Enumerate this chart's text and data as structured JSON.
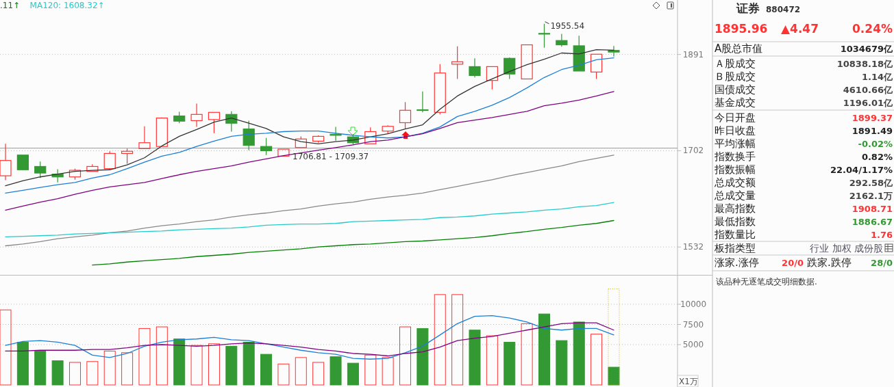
{
  "chart_data": [
    {
      "type": "candlestick",
      "categories": [
        null,
        null,
        null,
        null,
        null,
        null,
        null,
        null,
        null,
        null,
        null,
        null,
        null,
        null,
        null,
        null,
        null,
        null,
        null,
        null,
        null,
        null,
        null,
        null,
        null,
        null,
        null,
        null,
        null,
        null,
        null,
        null,
        null,
        null,
        null,
        null
      ],
      "ohlc": [
        [
          1656,
          1715,
          1648,
          1684
        ],
        [
          1694,
          1694,
          1667,
          1667
        ],
        [
          1673,
          1682,
          1652,
          1661
        ],
        [
          1659,
          1668,
          1644,
          1654
        ],
        [
          1654,
          1669,
          1649,
          1666
        ],
        [
          1664,
          1677,
          1664,
          1673
        ],
        [
          1669,
          1701,
          1667,
          1697
        ],
        [
          1697,
          1706,
          1678,
          1701
        ],
        [
          1706,
          1748,
          1706,
          1717
        ],
        [
          1710,
          1765,
          1710,
          1764
        ],
        [
          1768,
          1776,
          1754,
          1758
        ],
        [
          1759,
          1792,
          1747,
          1771
        ],
        [
          1761,
          1775,
          1735,
          1775
        ],
        [
          1771,
          1777,
          1738,
          1754
        ],
        [
          1743,
          1759,
          1703,
          1712
        ],
        [
          1710,
          1726,
          1694,
          1702
        ],
        [
          1692,
          1705,
          1692,
          1705
        ],
        [
          1708,
          1729,
          1708,
          1724
        ],
        [
          1720,
          1731,
          1717,
          1729
        ],
        [
          1733,
          1747,
          1721,
          1731
        ],
        [
          1728,
          1733,
          1713,
          1717
        ],
        [
          1715,
          1746,
          1715,
          1738
        ],
        [
          1739,
          1750,
          1734,
          1748
        ],
        [
          1755,
          1795,
          1743,
          1779
        ],
        [
          1780,
          1816,
          1775,
          1779
        ],
        [
          1775,
          1871,
          1771,
          1853
        ],
        [
          1871,
          1908,
          1841,
          1876
        ],
        [
          1866,
          1883,
          1844,
          1848
        ],
        [
          1838,
          1866,
          1820,
          1866
        ],
        [
          1883,
          1885,
          1841,
          1851
        ],
        [
          1841,
          1911,
          1841,
          1911
        ],
        [
          1935,
          1955.54,
          1905,
          1934
        ],
        [
          1920,
          1934,
          1907,
          1911
        ],
        [
          1909,
          1930,
          1857,
          1857
        ],
        [
          1855,
          1891.49,
          1841,
          1891.49
        ],
        [
          1899.37,
          1908.71,
          1886.67,
          1895.96
        ]
      ],
      "colors": [
        "#ff3333",
        "#339933",
        "#339933",
        "#339933",
        "#ff3333",
        "#ff3333",
        "#ff3333",
        "#ff3333",
        "#ff3333",
        "#ff3333",
        "#339933",
        "#ff3333",
        "#ff3333",
        "#339933",
        "#339933",
        "#339933",
        "#ff3333",
        "#ff3333",
        "#ff3333",
        "#339933",
        "#339933",
        "#ff3333",
        "#ff3333",
        "#ff3333",
        "#339933",
        "#ff3333",
        "#ff3333",
        "#339933",
        "#ff3333",
        "#339933",
        "#ff3333",
        "#339933",
        "#339933",
        "#339933",
        "#ff3333",
        "#339933"
      ],
      "series": [
        {
          "type": "line",
          "color": "#333333",
          "values": [
            1638,
            1647,
            1654,
            1659,
            1664,
            1666,
            1667,
            1676,
            1689,
            1711,
            1729,
            1742,
            1756,
            1764,
            1754,
            1744,
            1728,
            1719,
            1715,
            1719,
            1722,
            1728,
            1734,
            1743,
            1751,
            1781,
            1807,
            1826,
            1841,
            1856,
            1870,
            1881,
            1894,
            1892,
            1901,
            1900
          ]
        },
        {
          "type": "line",
          "color": "#1a7fd6",
          "values": [
            1625,
            1630,
            1635,
            1640,
            1644,
            1652,
            1658,
            1669,
            1681,
            1692,
            1699,
            1710,
            1720,
            1729,
            1733,
            1735,
            1738,
            1739,
            1739,
            1735,
            1731,
            1728,
            1726,
            1728,
            1735,
            1747,
            1767,
            1777,
            1789,
            1804,
            1823,
            1844,
            1860,
            1869,
            1880,
            1884
          ]
        },
        {
          "type": "line",
          "color": "#800080",
          "values": [
            1595,
            1602,
            1609,
            1615,
            1623,
            1630,
            1636,
            1640,
            1644,
            1651,
            1658,
            1664,
            1669,
            1674,
            1681,
            1687,
            1693,
            1698,
            1703,
            1708,
            1713,
            1719,
            1722,
            1728,
            1734,
            1744,
            1755,
            1760,
            1765,
            1771,
            1777,
            1788,
            1793,
            1799,
            1807,
            1816
          ]
        },
        {
          "type": "line",
          "color": "#888888",
          "values": [
            1534,
            1537,
            1541,
            1546,
            1549,
            1552,
            1556,
            1559,
            1564,
            1568,
            1571,
            1575,
            1578,
            1583,
            1587,
            1590,
            1594,
            1597,
            1602,
            1606,
            1609,
            1614,
            1618,
            1621,
            1625,
            1631,
            1637,
            1643,
            1649,
            1656,
            1662,
            1668,
            1674,
            1682,
            1688,
            1694
          ]
        },
        {
          "type": "line",
          "color": "#22cccc",
          "values": [
            1549,
            1550,
            1551,
            1552,
            1554,
            1555,
            1556,
            1557,
            1558,
            1559,
            1561,
            1562,
            1563,
            1564,
            1566,
            1569,
            1570,
            1571,
            1571,
            1572,
            1575,
            1576,
            1577,
            1578,
            1579,
            1582,
            1583,
            1585,
            1588,
            1590,
            1592,
            1595,
            1597,
            1601,
            1603,
            1608.32
          ]
        },
        {
          "type": "line",
          "color": "#008000",
          "values": [
            null,
            null,
            null,
            null,
            null,
            1502,
            1504,
            1507,
            1509,
            1511,
            1513,
            1516,
            1518,
            1520,
            1523,
            1525,
            1527,
            1529,
            1532,
            1534,
            1536,
            1537,
            1539,
            1541,
            1542,
            1544,
            1546,
            1548,
            1551,
            1555,
            1558,
            1562,
            1565,
            1569,
            1572,
            1577
          ]
        }
      ],
      "log": true,
      "ylim": [
        1486,
        2007
      ],
      "yticks": [
        1532,
        1702,
        1891
      ],
      "grid": "y",
      "tick_labels": "y",
      "ref_lines": [
        {
          "axis": "y",
          "value": 1706.81,
          "color": "#aaaaaa"
        }
      ],
      "annotations": [
        ".11↑",
        "MA120: 1608.32↑",
        "1955.54",
        {
          "text": "1706.81 - 1709.37",
          "y": 1706.81
        }
      ]
    },
    {
      "type": "bar",
      "categories": [
        null,
        null,
        null,
        null,
        null,
        null,
        null,
        null,
        null,
        null,
        null,
        null,
        null,
        null,
        null,
        null,
        null,
        null,
        null,
        null,
        null,
        null,
        null,
        null,
        null,
        null,
        null,
        null,
        null,
        null,
        null,
        null,
        null,
        null,
        null,
        null
      ],
      "series": [
        {
          "values": [
            9300,
            5300,
            4200,
            3000,
            2800,
            2900,
            4200,
            4000,
            7000,
            7200,
            5700,
            4900,
            5100,
            4800,
            5300,
            3800,
            2600,
            3400,
            2800,
            3500,
            2700,
            3700,
            3400,
            7200,
            7000,
            11200,
            11200,
            6800,
            6100,
            5300,
            7600,
            8800,
            5500,
            7800,
            6300,
            2200
          ],
          "colors": [
            "#ff3333",
            "#339933",
            "#339933",
            "#339933",
            "#ff3333",
            "#ff3333",
            "#ff3333",
            "#ff3333",
            "#ff3333",
            "#ff3333",
            "#339933",
            "#ff3333",
            "#ff3333",
            "#339933",
            "#339933",
            "#339933",
            "#ff3333",
            "#ff3333",
            "#ff3333",
            "#339933",
            "#339933",
            "#ff3333",
            "#ff3333",
            "#ff3333",
            "#339933",
            "#ff3333",
            "#ff3333",
            "#339933",
            "#ff3333",
            "#339933",
            "#ff3333",
            "#339933",
            "#339933",
            "#339933",
            "#ff3333",
            "#339933"
          ]
        },
        {
          "type": "bar",
          "color": "#c8b400",
          "line_style": "dotted",
          "values": [
            null,
            null,
            null,
            null,
            null,
            null,
            null,
            null,
            null,
            null,
            null,
            null,
            null,
            null,
            null,
            null,
            null,
            null,
            null,
            null,
            null,
            null,
            null,
            null,
            null,
            null,
            null,
            null,
            null,
            null,
            null,
            null,
            null,
            null,
            null,
            11900
          ]
        },
        {
          "type": "line",
          "color": "#1a7fd6",
          "values": [
            4900,
            5400,
            5500,
            5300,
            4900,
            3700,
            3400,
            3900,
            4800,
            5300,
            5600,
            5700,
            5900,
            5600,
            5500,
            5100,
            4700,
            4300,
            4000,
            3800,
            3300,
            3200,
            3300,
            4000,
            4800,
            6200,
            7600,
            8500,
            8600,
            8300,
            7800,
            7000,
            6800,
            7000,
            7000,
            6200
          ]
        },
        {
          "type": "line",
          "color": "#800080",
          "values": [
            4200,
            4200,
            4300,
            4300,
            4300,
            4400,
            4400,
            4600,
            4900,
            5000,
            4900,
            4800,
            4900,
            5100,
            5200,
            5100,
            4900,
            4700,
            4400,
            4200,
            3900,
            3800,
            3600,
            3900,
            4100,
            4700,
            5500,
            5800,
            6000,
            6400,
            6800,
            7200,
            7600,
            7700,
            7700,
            6800
          ]
        }
      ],
      "ylim": [
        0,
        13560
      ],
      "yticks": [
        5000,
        7500,
        10000
      ],
      "grid": "y",
      "tick_labels": "y",
      "annotations": [
        "X1万"
      ]
    },
    {
      "type": "other",
      "title": "证券",
      "subtitle": "880472",
      "categories": [
        "A股总市值",
        "Ａ股成交",
        "Ｂ股成交",
        "国债成交",
        "基金成交",
        "今日开盘",
        "昨日收盘",
        "平均涨幅",
        "指数换手",
        "指数振幅",
        "总成交额",
        "总成交量",
        "最高指数",
        "最低指数",
        "指数量比",
        "板指类型",
        "涨家.涨停",
        "跌家.跌停"
      ],
      "value_labels": [
        "1034679亿",
        "10838.18亿",
        "1.14亿",
        "4610.66亿",
        "1196.01亿",
        "1899.37",
        "1891.49",
        "-0.02%",
        "0.82%",
        "22.04/1.17%",
        "292.58亿",
        "2162.1万",
        "1908.71",
        "1886.67",
        "1.76",
        "行业 加权 成份股",
        "20/0",
        "28/0"
      ],
      "colors": [
        "#222222",
        "#444444",
        "#444444",
        "#444444",
        "#444444",
        "#ff3333",
        "#222222",
        "#339933",
        "#222222",
        "#222222",
        "#444444",
        "#444444",
        "#ff3333",
        "#339933",
        "#ff3333",
        "#555566",
        "#ff3333",
        "#339933"
      ],
      "annotations": [
        "1895.96",
        "▲4.47",
        "0.24%",
        "该品种无逐笔成交明细数据."
      ]
    }
  ]
}
